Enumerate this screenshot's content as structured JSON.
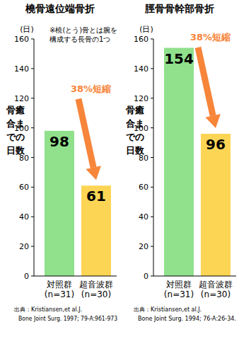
{
  "chart_data": [
    {
      "type": "bar",
      "title": "橈骨遠位端骨折",
      "note": [
        "※橈(とう)骨とは腕を",
        "構成する長骨の1つ"
      ],
      "ylabel": "骨癒合までの日数",
      "ylabel_unit": "(日)",
      "categories": [
        "対照群\n(n=31)",
        "超音波群\n(n=30)"
      ],
      "values": [
        98,
        61
      ],
      "colors": [
        "#90e08c",
        "#fdd555"
      ],
      "ylim": [
        0,
        160
      ],
      "yticks": [
        0,
        20,
        40,
        60,
        80,
        100,
        120,
        140,
        160
      ],
      "grid": false,
      "data_labels": true,
      "annotation": "38%短縮",
      "source": [
        "出典：Kristiansen,et al.J.",
        "Bone Joint Surg. 1997; 79-A:961-973"
      ]
    },
    {
      "type": "bar",
      "title": "脛骨骨幹部骨折",
      "ylabel": "骨癒合までの日数",
      "ylabel_unit": "(日)",
      "categories": [
        "対照群\n(n=31)",
        "超音波群\n(n=30)"
      ],
      "values": [
        154,
        96
      ],
      "colors": [
        "#90e08c",
        "#fdd555"
      ],
      "ylim": [
        0,
        160
      ],
      "yticks": [
        0,
        20,
        40,
        60,
        80,
        100,
        120,
        140,
        160
      ],
      "grid": false,
      "data_labels": true,
      "annotation": "38%短縮",
      "source": [
        "出典：Kristiansen,et al.J.",
        "Bone Joint Surg. 1994; 76-A:26-34."
      ]
    }
  ]
}
